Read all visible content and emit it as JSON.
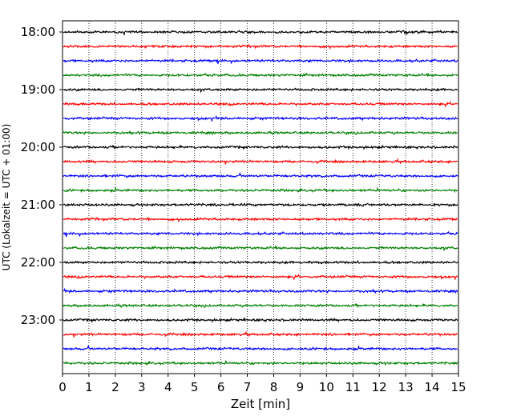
{
  "chart_data": {
    "type": "line",
    "title": "",
    "xlabel": "Zeit  [min]",
    "ylabel": "UTC (Lokalzeit = UTC + 01:00)",
    "xlim": [
      0,
      15
    ],
    "x_ticks": [
      "0",
      "1",
      "2",
      "3",
      "4",
      "5",
      "6",
      "7",
      "8",
      "9",
      "10",
      "11",
      "12",
      "13",
      "14",
      "15"
    ],
    "y_ticks": [
      "18:00",
      "19:00",
      "20:00",
      "21:00",
      "22:00",
      "23:00"
    ],
    "grid": "vertical dotted",
    "traces": {
      "start_time": "18:00",
      "interval_minutes": 15,
      "count": 24,
      "colors": [
        "#000000",
        "#ff0000",
        "#0000ff",
        "#008000"
      ],
      "amplitude": "small noise-like oscillations (seismogram helicorder)"
    }
  }
}
